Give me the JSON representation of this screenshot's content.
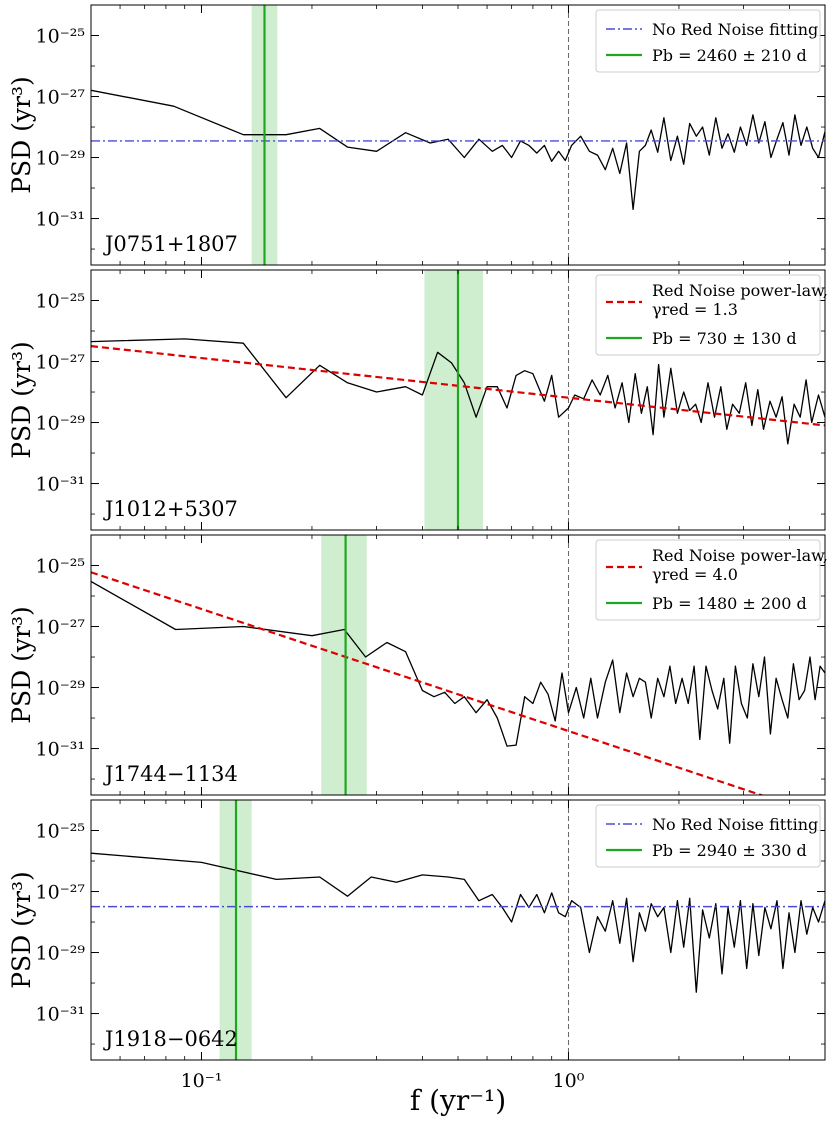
{
  "figure": {
    "xlabel": "f (yr⁻¹)",
    "ylabel": "PSD (yr³)",
    "xscale": "log",
    "yscale": "log",
    "xlim": [
      0.05,
      5.0
    ],
    "ylim": [
      3e-33,
      1e-24
    ],
    "x_ticks": [
      {
        "value": 0.1,
        "label": "10⁻¹"
      },
      {
        "value": 1,
        "label": "10⁰"
      }
    ],
    "y_ticks": [
      {
        "value": 1e-25,
        "label": "10⁻²⁵"
      },
      {
        "value": 1e-27,
        "label": "10⁻²⁷"
      },
      {
        "value": 1e-29,
        "label": "10⁻²⁹"
      },
      {
        "value": 1e-31,
        "label": "10⁻³¹"
      }
    ],
    "reference_line_x": 1.0,
    "colors": {
      "psd": "#000000",
      "red_noise": "#dd0000",
      "no_red_noise": "#4b4bd6",
      "orbital": "#1fa81f",
      "band": "#bfe8bf",
      "reference": "#666666"
    }
  },
  "chart_data": [
    {
      "type": "line",
      "pulsar": "J0751+1807",
      "legend": {
        "placement": "top-right",
        "baseline_label": "No Red Noise fitting",
        "period_label": "Pb = 2460 ± 210 d"
      },
      "baseline": {
        "kind": "constant",
        "value": 3.5e-29
      },
      "orbital_frequency": 0.1485,
      "band": [
        0.137,
        0.161
      ],
      "psd": {
        "x": [
          0.05,
          0.084,
          0.13,
          0.17,
          0.21,
          0.25,
          0.3,
          0.36,
          0.42,
          0.47,
          0.52,
          0.57,
          0.62,
          0.66,
          0.7,
          0.74,
          0.78,
          0.82,
          0.86,
          0.9,
          0.94,
          0.98,
          1.02,
          1.08,
          1.14,
          1.2,
          1.26,
          1.32,
          1.38,
          1.44,
          1.5,
          1.56,
          1.62,
          1.68,
          1.75,
          1.82,
          1.9,
          1.98,
          2.06,
          2.14,
          2.23,
          2.32,
          2.42,
          2.52,
          2.62,
          2.72,
          2.83,
          2.94,
          3.06,
          3.18,
          3.3,
          3.43,
          3.56,
          3.7,
          3.84,
          3.99,
          4.14,
          4.3,
          4.46,
          4.63,
          4.8,
          5.0
        ],
        "y": [
          1.6e-27,
          4.8e-28,
          5.6e-29,
          5.6e-29,
          9e-29,
          2.2e-29,
          1.6e-29,
          6.5e-29,
          3e-29,
          4e-29,
          1e-29,
          4e-29,
          1.6e-29,
          2.5e-29,
          1e-29,
          3.5e-29,
          2.5e-29,
          1.4e-29,
          2.5e-29,
          7.5e-30,
          1.6e-29,
          8e-30,
          2.5e-29,
          5e-29,
          1.6e-29,
          1.2e-29,
          4e-30,
          2e-29,
          3e-30,
          3e-29,
          2e-31,
          1.6e-29,
          2.5e-29,
          8e-29,
          1.5e-29,
          2e-28,
          8e-30,
          5e-29,
          6e-30,
          1.3e-28,
          5e-29,
          1e-28,
          1.2e-29,
          2e-28,
          2e-29,
          6e-29,
          1.5e-29,
          1e-28,
          2.5e-29,
          2.5e-28,
          3e-29,
          1.5e-28,
          1e-29,
          4e-29,
          1.4e-28,
          1.2e-29,
          2.5e-28,
          2.5e-29,
          1e-28,
          2e-29,
          1e-29,
          7e-29
        ]
      }
    },
    {
      "type": "line",
      "pulsar": "J1012+5307",
      "legend": {
        "placement": "top-right",
        "model_label": "Red Noise power-law,",
        "gamma_label": "γred = 1.3",
        "period_label": "Pb = 730 ± 130 d"
      },
      "baseline": {
        "kind": "power-law",
        "gamma": 1.3,
        "value_at_x0": 3.2e-27,
        "x0": 0.05
      },
      "orbital_frequency": 0.5,
      "band": [
        0.405,
        0.585
      ],
      "psd": {
        "x": [
          0.05,
          0.09,
          0.13,
          0.17,
          0.21,
          0.25,
          0.3,
          0.36,
          0.4,
          0.44,
          0.48,
          0.52,
          0.56,
          0.6,
          0.64,
          0.68,
          0.72,
          0.76,
          0.8,
          0.86,
          0.9,
          0.94,
          1.0,
          1.04,
          1.1,
          1.16,
          1.22,
          1.28,
          1.34,
          1.4,
          1.46,
          1.52,
          1.58,
          1.64,
          1.7,
          1.76,
          1.82,
          1.9,
          1.98,
          2.06,
          2.14,
          2.22,
          2.3,
          2.4,
          2.5,
          2.6,
          2.7,
          2.8,
          2.92,
          3.04,
          3.16,
          3.28,
          3.4,
          3.54,
          3.68,
          3.82,
          3.96,
          4.12,
          4.28,
          4.44,
          4.6,
          4.8,
          5.0
        ],
        "y": [
          4.5e-27,
          5.5e-27,
          4e-27,
          6.5e-29,
          7.5e-28,
          2e-28,
          1e-28,
          1.5e-28,
          8e-29,
          2e-27,
          9e-28,
          2e-28,
          1.5e-29,
          1.5e-28,
          1.5e-28,
          3e-29,
          3.5e-28,
          5e-28,
          4e-28,
          5e-29,
          3.5e-28,
          1.5e-29,
          3e-29,
          8e-29,
          6e-29,
          2.5e-28,
          8e-29,
          3.5e-28,
          3e-29,
          2e-28,
          1e-29,
          4e-28,
          2e-29,
          1.5e-28,
          4e-30,
          8e-28,
          1.5e-29,
          6e-28,
          2e-29,
          1e-28,
          2.5e-29,
          4e-29,
          1e-29,
          2e-28,
          1.5e-29,
          1.5e-28,
          6e-30,
          4e-29,
          2e-29,
          2e-28,
          8e-30,
          1.2e-28,
          6e-30,
          5e-29,
          1.5e-29,
          7e-29,
          2e-30,
          4e-29,
          1.5e-29,
          2.5e-28,
          1e-29,
          8e-29,
          1.5e-29
        ]
      }
    },
    {
      "type": "line",
      "pulsar": "J1744−1134",
      "legend": {
        "placement": "top-right",
        "model_label": "Red Noise power-law,",
        "gamma_label": "γred = 4.0",
        "period_label": "Pb = 1480 ± 200 d"
      },
      "baseline": {
        "kind": "power-law",
        "gamma": 4.0,
        "value_at_x0": 6e-26,
        "x0": 0.05
      },
      "orbital_frequency": 0.247,
      "band": [
        0.212,
        0.282
      ],
      "psd": {
        "x": [
          0.05,
          0.085,
          0.13,
          0.2,
          0.245,
          0.28,
          0.32,
          0.36,
          0.4,
          0.43,
          0.46,
          0.49,
          0.52,
          0.56,
          0.6,
          0.64,
          0.68,
          0.72,
          0.76,
          0.8,
          0.84,
          0.88,
          0.92,
          0.96,
          1.0,
          1.05,
          1.1,
          1.15,
          1.2,
          1.26,
          1.32,
          1.38,
          1.44,
          1.5,
          1.56,
          1.62,
          1.68,
          1.75,
          1.82,
          1.89,
          1.96,
          2.04,
          2.12,
          2.2,
          2.28,
          2.37,
          2.46,
          2.55,
          2.65,
          2.75,
          2.85,
          2.96,
          3.07,
          3.18,
          3.3,
          3.42,
          3.55,
          3.68,
          3.82,
          3.96,
          4.1,
          4.25,
          4.4,
          4.55,
          4.7,
          4.85,
          5.0
        ],
        "y": [
          3e-26,
          8e-28,
          1e-27,
          5e-28,
          8e-28,
          1e-28,
          3e-28,
          1.5e-28,
          8e-30,
          5e-30,
          7e-30,
          3e-30,
          5e-30,
          1.5e-30,
          4e-30,
          1e-30,
          1.2e-31,
          1.3e-31,
          5e-30,
          3e-30,
          1.5e-29,
          6e-30,
          8e-31,
          3e-29,
          1.5e-30,
          1e-29,
          1e-30,
          2e-29,
          1e-30,
          1.5e-29,
          8e-29,
          1.5e-30,
          3e-29,
          5e-30,
          2e-29,
          1.5e-29,
          1e-30,
          2e-29,
          5e-30,
          5e-29,
          3e-30,
          2e-29,
          3e-30,
          5e-29,
          2e-31,
          5e-29,
          8e-30,
          2e-30,
          2e-29,
          1.5e-31,
          5e-29,
          3e-30,
          1e-30,
          6e-29,
          5e-30,
          1e-28,
          3e-31,
          2e-29,
          4e-30,
          1e-30,
          6e-29,
          4e-30,
          8e-30,
          1e-28,
          4e-30,
          5e-29,
          3e-29
        ]
      }
    },
    {
      "type": "line",
      "pulsar": "J1918−0642",
      "legend": {
        "placement": "top-right",
        "baseline_label": "No Red Noise fitting",
        "period_label": "Pb = 2940 ± 330 d"
      },
      "baseline": {
        "kind": "constant",
        "value": 3.2e-28
      },
      "orbital_frequency": 0.1242,
      "band": [
        0.112,
        0.137
      ],
      "psd": {
        "x": [
          0.05,
          0.1,
          0.16,
          0.21,
          0.25,
          0.29,
          0.34,
          0.4,
          0.47,
          0.52,
          0.57,
          0.62,
          0.66,
          0.7,
          0.74,
          0.78,
          0.82,
          0.86,
          0.9,
          0.94,
          0.98,
          1.02,
          1.08,
          1.14,
          1.2,
          1.26,
          1.32,
          1.38,
          1.44,
          1.5,
          1.56,
          1.62,
          1.68,
          1.75,
          1.82,
          1.9,
          1.98,
          2.06,
          2.14,
          2.23,
          2.32,
          2.42,
          2.52,
          2.62,
          2.72,
          2.83,
          2.94,
          3.06,
          3.18,
          3.3,
          3.43,
          3.56,
          3.7,
          3.84,
          3.99,
          4.14,
          4.3,
          4.46,
          4.63,
          4.8,
          5.0
        ],
        "y": [
          1.8e-26,
          9e-27,
          2.5e-27,
          3e-27,
          7e-28,
          3e-27,
          2e-27,
          3.5e-27,
          3e-27,
          2.5e-27,
          5e-28,
          8e-28,
          3e-28,
          1e-28,
          8e-28,
          3e-28,
          8e-28,
          2e-28,
          9e-28,
          2e-28,
          1.5e-28,
          5e-28,
          3e-28,
          1e-29,
          1.5e-28,
          5e-29,
          5e-28,
          2e-29,
          6e-28,
          5e-30,
          2e-28,
          5e-29,
          4e-28,
          1.5e-28,
          3e-28,
          1e-29,
          5e-28,
          1.5e-29,
          6e-28,
          5e-31,
          2.5e-28,
          3e-29,
          4e-28,
          2e-30,
          3e-28,
          1.5e-29,
          5e-28,
          3e-30,
          4e-28,
          8e-30,
          3e-28,
          6e-29,
          5e-28,
          3e-30,
          2e-28,
          1e-29,
          5e-28,
          4e-29,
          3e-28,
          1e-28,
          5e-28
        ]
      }
    }
  ]
}
